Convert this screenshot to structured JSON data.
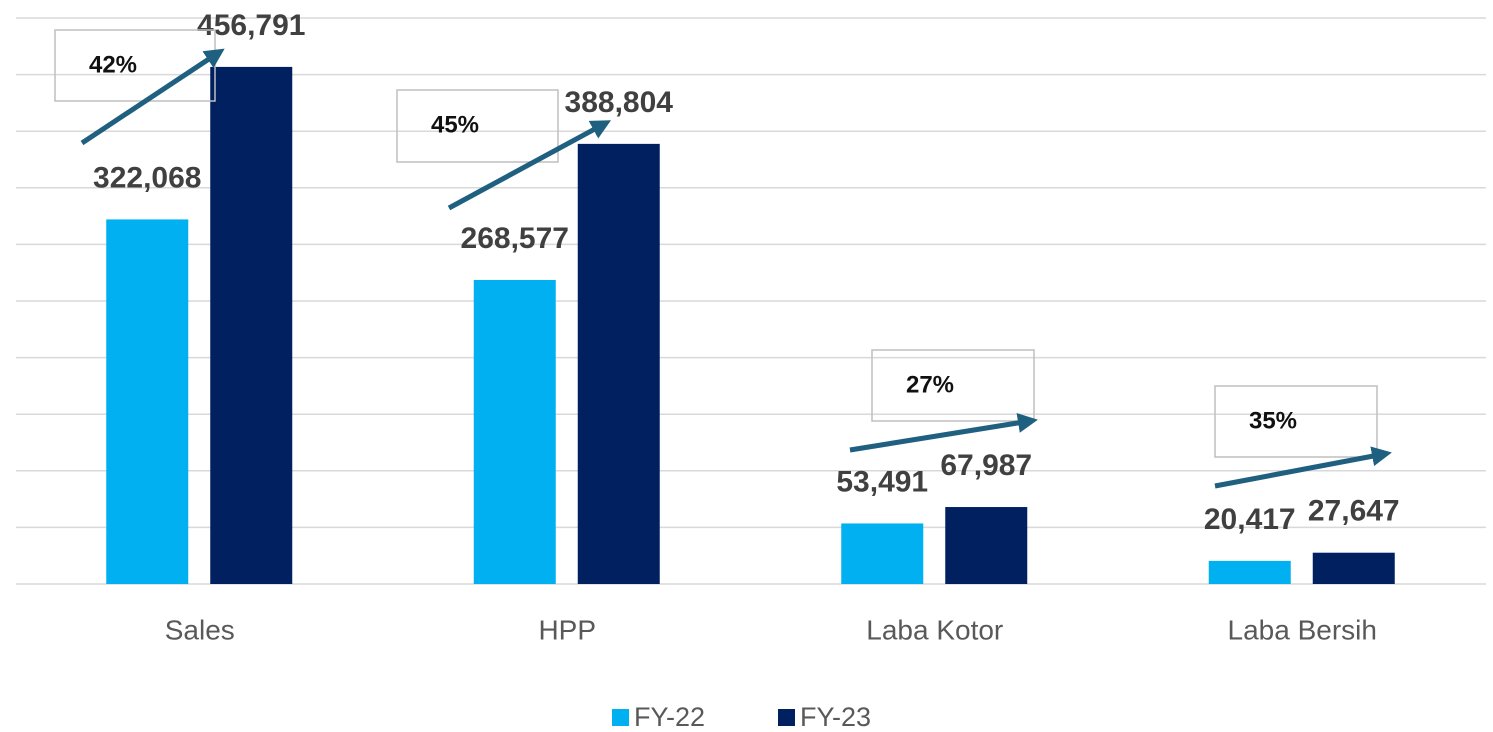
{
  "chart_data": {
    "type": "bar",
    "categories": [
      "Sales",
      "HPP",
      "Laba Kotor",
      "Laba Bersih"
    ],
    "series": [
      {
        "name": "FY-22",
        "color": "#00b0f0",
        "values": [
          322068,
          268577,
          53491,
          20417
        ],
        "value_labels": [
          "322,068",
          "268,577",
          "53,491",
          "20,417"
        ]
      },
      {
        "name": "FY-23",
        "color": "#002060",
        "values": [
          456791,
          388804,
          67987,
          27647
        ],
        "value_labels": [
          "456,791",
          "388,804",
          "67,987",
          "27,647"
        ]
      }
    ],
    "growth_labels": [
      "42%",
      "45%",
      "27%",
      "35%"
    ],
    "ylim": [
      0,
      500000
    ],
    "yticks": [
      0,
      50000,
      100000,
      150000,
      200000,
      250000,
      300000,
      350000,
      400000,
      450000,
      500000
    ],
    "grid": true,
    "legend": "bottom"
  }
}
